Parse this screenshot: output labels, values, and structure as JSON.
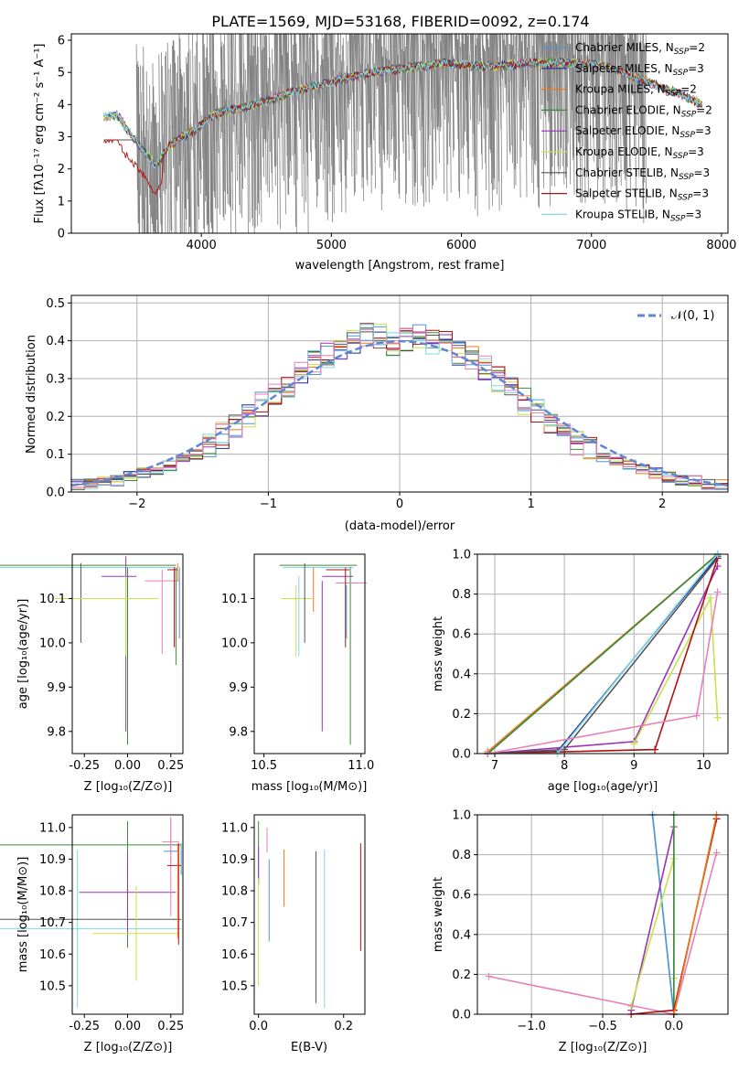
{
  "figure_title": "PLATE=1569, MJD=53168, FIBERID=0092, z=0.174",
  "colors": {
    "Chabrier MILES": "#4f95d0",
    "Salpeter MILES": "#1f2b8c",
    "Kroupa MILES": "#ee7a1c",
    "Chabrier ELODIE": "#3c8c3c",
    "Salpeter ELODIE": "#9a33b8",
    "Kroupa ELODIE": "#c8e04a",
    "Chabrier STELIB": "#555555",
    "Salpeter STELIB": "#b01010",
    "Kroupa STELIB": "#7dd8e8",
    "data": "#808080",
    "pink": "#e87fb8",
    "normal": "#5f86d8"
  },
  "chart_data": [
    {
      "type": "line",
      "xlabel": "wavelength [Angstrom, rest frame]",
      "ylabel": "Flux [fλ10⁻¹⁷ erg cm⁻² s⁻¹ A⁻¹]",
      "xlim": [
        3000,
        8050
      ],
      "ylim": [
        0,
        6.2
      ],
      "xticks": [
        4000,
        5000,
        6000,
        7000,
        8000
      ],
      "yticks": [
        0,
        1,
        2,
        3,
        4,
        5,
        6
      ],
      "grid": false,
      "legend": "right",
      "legend_entries": [
        {
          "label": "Chabrier MILES, N",
          "sub": "SSP",
          "suffix": "=2",
          "color_key": "Chabrier MILES"
        },
        {
          "label": "Salpeter MILES, N",
          "sub": "SSP",
          "suffix": "=3",
          "color_key": "Salpeter MILES"
        },
        {
          "label": "Kroupa MILES, N",
          "sub": "SSP",
          "suffix": "=2",
          "color_key": "Kroupa MILES"
        },
        {
          "label": "Chabrier ELODIE, N",
          "sub": "SSP",
          "suffix": "=2",
          "color_key": "Chabrier ELODIE"
        },
        {
          "label": "Salpeter ELODIE, N",
          "sub": "SSP",
          "suffix": "=3",
          "color_key": "Salpeter ELODIE"
        },
        {
          "label": "Kroupa ELODIE, N",
          "sub": "SSP",
          "suffix": "=3",
          "color_key": "Kroupa ELODIE"
        },
        {
          "label": "Chabrier STELIB, N",
          "sub": "SSP",
          "suffix": "=3",
          "color_key": "Chabrier STELIB"
        },
        {
          "label": "Salpeter STELIB, N",
          "sub": "SSP",
          "suffix": "=3",
          "color_key": "Salpeter STELIB"
        },
        {
          "label": "Kroupa STELIB, N",
          "sub": "SSP",
          "suffix": "=3",
          "color_key": "Kroupa STELIB"
        }
      ],
      "model_continuum": {
        "x": [
          3250,
          3350,
          3450,
          3550,
          3650,
          3750,
          3850,
          3950,
          4100,
          4300,
          4500,
          4700,
          4900,
          5100,
          5300,
          5500,
          5700,
          5900,
          6100,
          6300,
          6500,
          6700,
          6900,
          7100,
          7300,
          7500,
          7700,
          7850
        ],
        "y": [
          3.6,
          3.7,
          3.1,
          2.6,
          2.1,
          2.7,
          3.0,
          3.2,
          3.7,
          3.9,
          4.1,
          4.4,
          4.6,
          4.8,
          5.0,
          5.1,
          5.2,
          5.3,
          5.2,
          5.2,
          5.3,
          5.3,
          5.3,
          5.2,
          4.9,
          4.6,
          4.3,
          4.0
        ]
      }
    },
    {
      "type": "histogram",
      "xlabel": "(data-model)/error",
      "ylabel": "Normed distribution",
      "xlim": [
        -2.5,
        2.5
      ],
      "ylim": [
        0,
        0.52
      ],
      "xticks": [
        -2,
        -1,
        0,
        1,
        2
      ],
      "yticks": [
        0.0,
        0.1,
        0.2,
        0.3,
        0.4,
        0.5
      ],
      "grid": true,
      "legend": "top-right",
      "legend_label": "𝒩(0, 1)",
      "bin_width": 0.1,
      "mean_hist": [
        0.02,
        0.02,
        0.03,
        0.03,
        0.04,
        0.05,
        0.06,
        0.07,
        0.09,
        0.1,
        0.12,
        0.15,
        0.17,
        0.2,
        0.23,
        0.26,
        0.28,
        0.31,
        0.34,
        0.36,
        0.38,
        0.4,
        0.42,
        0.41,
        0.39,
        0.4,
        0.41,
        0.4,
        0.39,
        0.37,
        0.35,
        0.33,
        0.3,
        0.27,
        0.24,
        0.21,
        0.18,
        0.16,
        0.13,
        0.11,
        0.09,
        0.08,
        0.07,
        0.06,
        0.05,
        0.04,
        0.03,
        0.03,
        0.02,
        0.02
      ]
    },
    {
      "type": "scatter-errorbar",
      "xlabel": "Z [log₁₀(Z/Z⊙)]",
      "ylabel": "age  [log₁₀(age/yr)]",
      "xlim": [
        -0.32,
        0.32
      ],
      "ylim": [
        9.75,
        10.2
      ],
      "xticks": [
        "-0.25",
        "0.00",
        "0.25"
      ],
      "yticks": [
        "9.8",
        "9.9",
        "10.0",
        "10.1"
      ]
    },
    {
      "type": "scatter-errorbar",
      "xlabel": "mass [log₁₀(M/M⊙)]",
      "xlim": [
        10.45,
        11.02
      ],
      "ylim": [
        9.75,
        10.2
      ],
      "xticks": [
        "10.5",
        "11.0"
      ],
      "yticks": [
        "9.8",
        "9.9",
        "10.0",
        "10.1"
      ]
    },
    {
      "type": "line",
      "xlabel": "age  [log₁₀(age/yr)]",
      "ylabel": "mass weight",
      "xlim": [
        6.75,
        10.35
      ],
      "ylim": [
        0,
        1.0
      ],
      "xticks": [
        "7",
        "8",
        "9",
        "10"
      ],
      "yticks": [
        "0.0",
        "0.2",
        "0.4",
        "0.6",
        "0.8",
        "1.0"
      ],
      "series": [
        {
          "color_key": "Chabrier MILES",
          "x": [
            6.9,
            10.2
          ],
          "y": [
            0.0,
            1.0
          ]
        },
        {
          "color_key": "Salpeter MILES",
          "x": [
            6.9,
            7.9,
            10.2
          ],
          "y": [
            0.0,
            0.01,
            0.99
          ]
        },
        {
          "color_key": "Kroupa MILES",
          "x": [
            6.9,
            10.2
          ],
          "y": [
            0.01,
            1.0
          ]
        },
        {
          "color_key": "Chabrier ELODIE",
          "x": [
            6.9,
            10.2
          ],
          "y": [
            0.0,
            1.0
          ]
        },
        {
          "color_key": "Salpeter ELODIE",
          "x": [
            6.9,
            9.0,
            10.2
          ],
          "y": [
            0.0,
            0.06,
            0.94
          ]
        },
        {
          "color_key": "Kroupa ELODIE",
          "x": [
            9.0,
            10.1,
            10.2
          ],
          "y": [
            0.05,
            0.78,
            0.18
          ]
        },
        {
          "color_key": "Chabrier STELIB",
          "x": [
            6.9,
            8.0,
            10.2
          ],
          "y": [
            0.0,
            0.02,
            0.98
          ]
        },
        {
          "color_key": "Salpeter STELIB",
          "x": [
            6.9,
            9.3,
            10.2
          ],
          "y": [
            0.0,
            0.02,
            0.98
          ]
        },
        {
          "color_key": "Kroupa STELIB",
          "x": [
            6.9,
            7.9,
            10.2
          ],
          "y": [
            0.0,
            0.0,
            1.0
          ]
        },
        {
          "color_key": "pink",
          "x": [
            6.9,
            9.9,
            10.2
          ],
          "y": [
            0.0,
            0.19,
            0.81
          ]
        }
      ]
    },
    {
      "type": "scatter-errorbar",
      "xlabel": "Z [log₁₀(Z/Z⊙)]",
      "ylabel": "mass [log₁₀(M/M⊙)]",
      "xlim": [
        -0.32,
        0.32
      ],
      "ylim": [
        10.41,
        11.04
      ],
      "xticks": [
        "-0.25",
        "0.00",
        "0.25"
      ],
      "yticks": [
        "10.5",
        "10.6",
        "10.7",
        "10.8",
        "10.9",
        "11.0"
      ]
    },
    {
      "type": "scatter-errorbar",
      "xlabel": "E(B-V)",
      "xlim": [
        -0.01,
        0.25
      ],
      "ylim": [
        10.41,
        11.04
      ],
      "xticks": [
        "0.0",
        "0.2"
      ],
      "yticks": [
        "10.5",
        "10.6",
        "10.7",
        "10.8",
        "10.9",
        "11.0"
      ]
    },
    {
      "type": "line",
      "xlabel": "Z [log₁₀(Z/Z⊙)]",
      "ylabel": "mass weight",
      "xlim": [
        -1.38,
        0.38
      ],
      "ylim": [
        0,
        1.0
      ],
      "xticks": [
        "−1.0",
        "−0.5",
        "0.0"
      ],
      "yticks": [
        "0.0",
        "0.2",
        "0.4",
        "0.6",
        "0.8",
        "1.0"
      ],
      "series": [
        {
          "color_key": "Kroupa STELIB",
          "x": [
            -0.15,
            0.0
          ],
          "y": [
            1.0,
            0.0
          ]
        },
        {
          "color_key": "Chabrier MILES",
          "x": [
            -0.15,
            0.0
          ],
          "y": [
            1.0,
            0.0
          ]
        },
        {
          "color_key": "Salpeter ELODIE",
          "x": [
            -0.3,
            0.0,
            0.0
          ],
          "y": [
            0.02,
            0.94,
            0.0
          ]
        },
        {
          "color_key": "Kroupa ELODIE",
          "x": [
            -0.3,
            0.0,
            0.0
          ],
          "y": [
            0.04,
            0.78,
            0.18
          ]
        },
        {
          "color_key": "Chabrier ELODIE",
          "x": [
            0.0,
            0.0
          ],
          "y": [
            1.0,
            0.0
          ]
        },
        {
          "color_key": "pink",
          "x": [
            -1.3,
            0.0,
            0.3
          ],
          "y": [
            0.19,
            0.0,
            0.81
          ]
        },
        {
          "color_key": "Salpeter STELIB",
          "x": [
            -0.3,
            0.0,
            0.3
          ],
          "y": [
            0.0,
            0.02,
            0.98
          ]
        },
        {
          "color_key": "Kroupa MILES",
          "x": [
            0.0,
            0.3
          ],
          "y": [
            0.0,
            1.0
          ]
        }
      ]
    }
  ]
}
